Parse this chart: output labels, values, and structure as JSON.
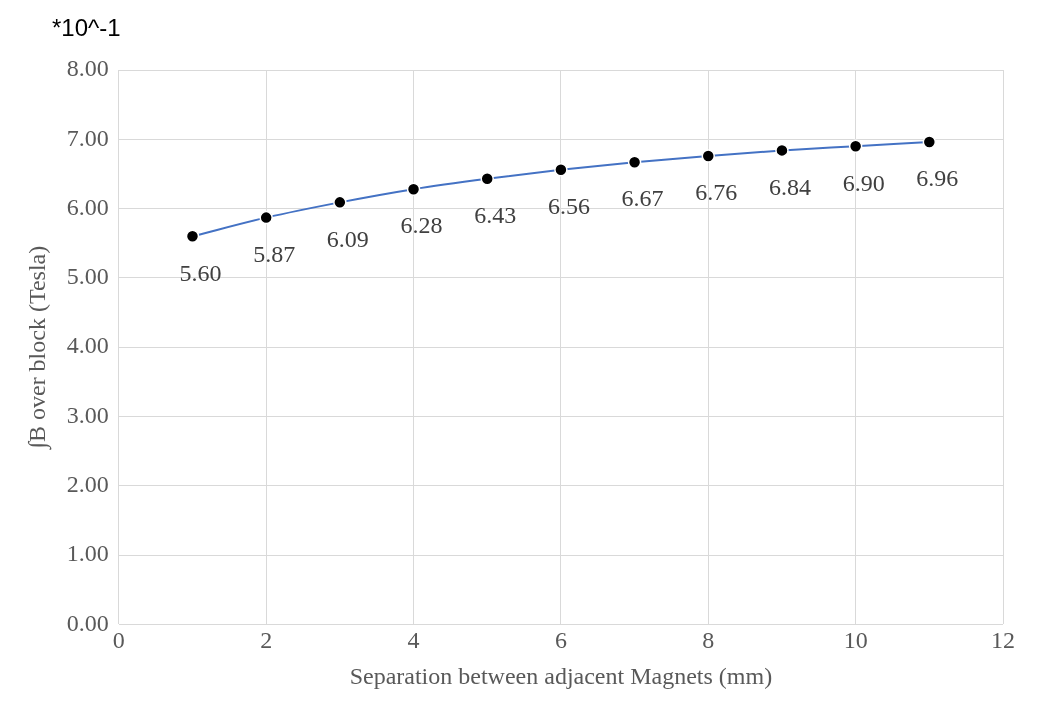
{
  "chart_data": {
    "type": "line",
    "xlabel": "Separation between adjacent Magnets (mm)",
    "ylabel": "∫B over block (Tesla)",
    "annotations": [
      "*10^-1"
    ],
    "x": [
      1,
      2,
      3,
      4,
      5,
      6,
      7,
      8,
      9,
      10,
      11
    ],
    "series": [
      {
        "color": "#4472c4",
        "values": [
          5.6,
          5.87,
          6.09,
          6.28,
          6.43,
          6.56,
          6.67,
          6.76,
          6.84,
          6.9,
          6.96
        ],
        "value_labels": [
          "5.60",
          "5.87",
          "6.09",
          "6.28",
          "6.43",
          "6.56",
          "6.67",
          "6.76",
          "6.84",
          "6.90",
          "6.96"
        ]
      }
    ],
    "xlim": [
      0,
      12
    ],
    "xticks": [
      0,
      2,
      4,
      6,
      8,
      10,
      12
    ],
    "ylim": [
      0,
      8
    ],
    "yticks": [
      {
        "value": 0,
        "label": "0.00"
      },
      {
        "value": 1,
        "label": "1.00"
      },
      {
        "value": 2,
        "label": "2.00"
      },
      {
        "value": 3,
        "label": "3.00"
      },
      {
        "value": 4,
        "label": "4.00"
      },
      {
        "value": 5,
        "label": "5.00"
      },
      {
        "value": 6,
        "label": "6.00"
      },
      {
        "value": 7,
        "label": "7.00"
      },
      {
        "value": 8,
        "label": "8.00"
      }
    ],
    "grid": true,
    "legend": false,
    "marker": "circle",
    "line_style": "solid"
  }
}
